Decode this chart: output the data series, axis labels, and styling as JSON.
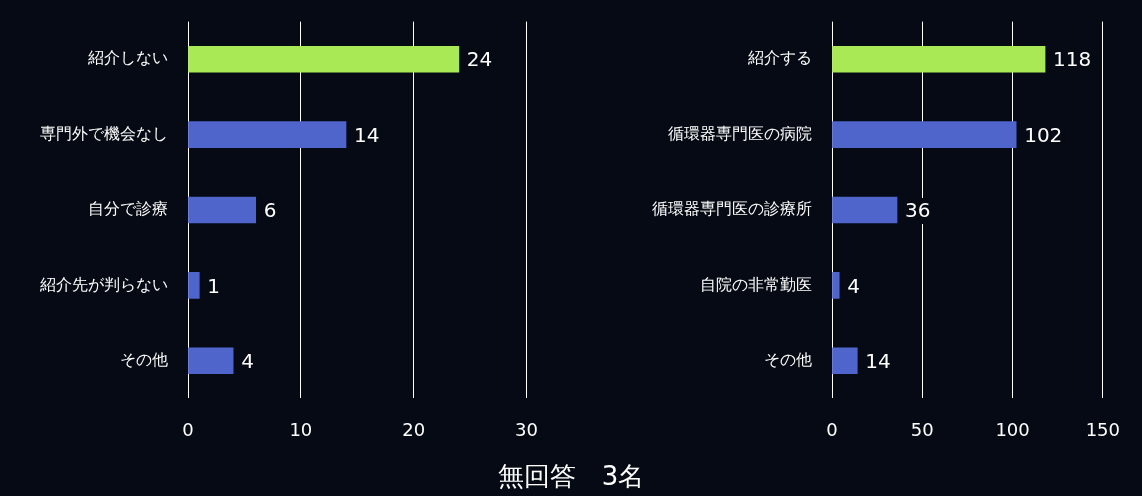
{
  "chart_data": [
    {
      "type": "bar",
      "orientation": "horizontal",
      "categories": [
        "紹介しない",
        "専門外で機会なし",
        "自分で診療",
        "紹介先が判らない",
        "その他"
      ],
      "values": [
        24,
        14,
        6,
        1,
        4
      ],
      "colors": [
        "#a8e955",
        "#4f65cc",
        "#4f65cc",
        "#4f65cc",
        "#4f65cc"
      ],
      "xlim": [
        0,
        30
      ],
      "xticks": [
        0,
        10,
        20,
        30
      ],
      "grid": "x",
      "data_labels": true,
      "legend": false
    },
    {
      "type": "bar",
      "orientation": "horizontal",
      "categories": [
        "紹介する",
        "循環器専門医の病院",
        "循環器専門医の診療所",
        "自院の非常勤医",
        "その他"
      ],
      "values": [
        118,
        102,
        36,
        4,
        14
      ],
      "colors": [
        "#a8e955",
        "#4f65cc",
        "#4f65cc",
        "#4f65cc",
        "#4f65cc"
      ],
      "xlim": [
        0,
        150
      ],
      "xticks": [
        0,
        50,
        100,
        150
      ],
      "grid": "x",
      "data_labels": true,
      "legend": false,
      "annotations": [
        "無回答　3名"
      ]
    }
  ]
}
